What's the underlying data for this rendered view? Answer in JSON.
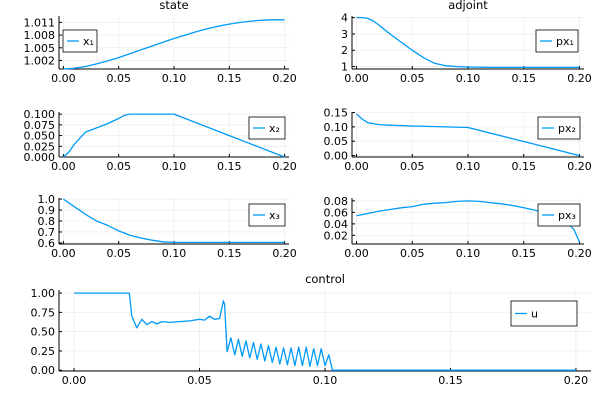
{
  "colors": {
    "series": "#009af9",
    "grid": "#e8e8e8",
    "axis": "#000000"
  },
  "chart_data": [
    {
      "id": "x1",
      "type": "line",
      "title": "state",
      "xlim": [
        -0.004,
        0.204
      ],
      "ylim": [
        1.0,
        1.0125
      ],
      "xticks": [
        0,
        0.05,
        0.1,
        0.15,
        0.2
      ],
      "xtick_labels": [
        "0.00",
        "0.05",
        "0.10",
        "0.15",
        "0.20"
      ],
      "yticks": [
        1.002,
        1.005,
        1.008,
        1.011
      ],
      "ytick_labels": [
        "1.002",
        "1.005",
        "1.008",
        "1.011"
      ],
      "legend": "top-left",
      "grid": true,
      "series": [
        {
          "name": "x₁",
          "x": [
            0,
            0.01,
            0.02,
            0.03,
            0.04,
            0.05,
            0.06,
            0.07,
            0.08,
            0.09,
            0.1,
            0.11,
            0.12,
            0.13,
            0.14,
            0.15,
            0.16,
            0.17,
            0.18,
            0.19,
            0.2
          ],
          "y": [
            1.0,
            1.0002,
            1.0006,
            1.0012,
            1.0019,
            1.0027,
            1.0036,
            1.0045,
            1.0054,
            1.0063,
            1.0072,
            1.008,
            1.0088,
            1.0095,
            1.0101,
            1.0106,
            1.011,
            1.0113,
            1.0115,
            1.0116,
            1.0116
          ]
        }
      ]
    },
    {
      "id": "px1",
      "type": "line",
      "title": "adjoint",
      "xlim": [
        -0.004,
        0.204
      ],
      "ylim": [
        0.85,
        4.1
      ],
      "xticks": [
        0,
        0.05,
        0.1,
        0.15,
        0.2
      ],
      "xtick_labels": [
        "0.00",
        "0.05",
        "0.10",
        "0.15",
        "0.20"
      ],
      "yticks": [
        1,
        2,
        3,
        4
      ],
      "ytick_labels": [
        "1",
        "2",
        "3",
        "4"
      ],
      "legend": "top-right",
      "grid": true,
      "series": [
        {
          "name": "px₁",
          "x": [
            0,
            0.005,
            0.01,
            0.015,
            0.02,
            0.03,
            0.04,
            0.05,
            0.06,
            0.07,
            0.08,
            0.09,
            0.1,
            0.12,
            0.15,
            0.2
          ],
          "y": [
            4.0,
            4.0,
            3.95,
            3.8,
            3.55,
            3.0,
            2.5,
            2.0,
            1.55,
            1.2,
            1.05,
            1.0,
            0.97,
            0.95,
            0.95,
            0.95
          ]
        }
      ]
    },
    {
      "id": "x2",
      "type": "line",
      "title": "",
      "xlim": [
        -0.004,
        0.204
      ],
      "ylim": [
        0.0,
        0.105
      ],
      "xticks": [
        0,
        0.05,
        0.1,
        0.15,
        0.2
      ],
      "xtick_labels": [
        "0.00",
        "0.05",
        "0.10",
        "0.15",
        "0.20"
      ],
      "yticks": [
        0,
        0.025,
        0.05,
        0.075,
        0.1
      ],
      "ytick_labels": [
        "0.000",
        "0.025",
        "0.050",
        "0.075",
        "0.100"
      ],
      "legend": "right",
      "grid": true,
      "series": [
        {
          "name": "x₂",
          "x": [
            0,
            0.005,
            0.01,
            0.02,
            0.03,
            0.04,
            0.05,
            0.055,
            0.06,
            0.07,
            0.08,
            0.09,
            0.1,
            0.15,
            0.2
          ],
          "y": [
            0.0,
            0.012,
            0.03,
            0.058,
            0.068,
            0.078,
            0.09,
            0.097,
            0.1,
            0.1,
            0.1,
            0.1,
            0.1,
            0.05,
            0.0
          ]
        }
      ]
    },
    {
      "id": "px2",
      "type": "line",
      "title": "",
      "xlim": [
        -0.004,
        0.204
      ],
      "ylim": [
        -0.005,
        0.152
      ],
      "xticks": [
        0,
        0.05,
        0.1,
        0.15,
        0.2
      ],
      "xtick_labels": [
        "0.00",
        "0.05",
        "0.10",
        "0.15",
        "0.20"
      ],
      "yticks": [
        0,
        0.05,
        0.1,
        0.15
      ],
      "ytick_labels": [
        "0.00",
        "0.05",
        "0.10",
        "0.15"
      ],
      "legend": "right",
      "grid": true,
      "series": [
        {
          "name": "px₂",
          "x": [
            0,
            0.005,
            0.01,
            0.02,
            0.03,
            0.05,
            0.08,
            0.1,
            0.15,
            0.2
          ],
          "y": [
            0.145,
            0.128,
            0.115,
            0.108,
            0.106,
            0.103,
            0.1,
            0.098,
            0.049,
            0.0
          ]
        }
      ]
    },
    {
      "id": "x3",
      "type": "line",
      "title": "",
      "xlim": [
        -0.004,
        0.204
      ],
      "ylim": [
        0.59,
        1.01
      ],
      "xticks": [
        0,
        0.05,
        0.1,
        0.15,
        0.2
      ],
      "xtick_labels": [
        "0.00",
        "0.05",
        "0.10",
        "0.15",
        "0.20"
      ],
      "yticks": [
        0.6,
        0.7,
        0.8,
        0.9,
        1.0
      ],
      "ytick_labels": [
        "0.6",
        "0.7",
        "0.8",
        "0.9",
        "1.0"
      ],
      "legend": "top-right",
      "grid": true,
      "series": [
        {
          "name": "x₃",
          "x": [
            0,
            0.01,
            0.02,
            0.025,
            0.03,
            0.04,
            0.05,
            0.06,
            0.07,
            0.08,
            0.09,
            0.1,
            0.15,
            0.2
          ],
          "y": [
            1.0,
            0.93,
            0.86,
            0.83,
            0.8,
            0.76,
            0.71,
            0.67,
            0.645,
            0.625,
            0.61,
            0.605,
            0.605,
            0.605
          ]
        }
      ]
    },
    {
      "id": "px3",
      "type": "line",
      "title": "",
      "xlim": [
        -0.004,
        0.204
      ],
      "ylim": [
        0.005,
        0.085
      ],
      "xticks": [
        0,
        0.05,
        0.1,
        0.15,
        0.2
      ],
      "xtick_labels": [
        "0.00",
        "0.05",
        "0.10",
        "0.15",
        "0.20"
      ],
      "yticks": [
        0.02,
        0.04,
        0.06,
        0.08
      ],
      "ytick_labels": [
        "0.02",
        "0.04",
        "0.06",
        "0.08"
      ],
      "legend": "right",
      "grid": true,
      "series": [
        {
          "name": "px₃",
          "x": [
            0,
            0.01,
            0.02,
            0.03,
            0.04,
            0.05,
            0.06,
            0.07,
            0.08,
            0.09,
            0.1,
            0.11,
            0.12,
            0.13,
            0.14,
            0.15,
            0.16,
            0.17,
            0.18,
            0.19,
            0.195,
            0.2
          ],
          "y": [
            0.054,
            0.058,
            0.062,
            0.065,
            0.068,
            0.07,
            0.074,
            0.076,
            0.077,
            0.079,
            0.08,
            0.079,
            0.077,
            0.075,
            0.072,
            0.068,
            0.064,
            0.058,
            0.05,
            0.04,
            0.03,
            0.008
          ]
        }
      ]
    },
    {
      "id": "u",
      "type": "line",
      "title": "control",
      "xlim": [
        -0.006,
        0.206
      ],
      "ylim": [
        -0.01,
        1.04
      ],
      "xticks": [
        0,
        0.05,
        0.1,
        0.15,
        0.2
      ],
      "xtick_labels": [
        "0.00",
        "0.05",
        "0.10",
        "0.15",
        "0.20"
      ],
      "yticks": [
        0,
        0.25,
        0.5,
        0.75,
        1.0
      ],
      "ytick_labels": [
        "0.00",
        "0.25",
        "0.50",
        "0.75",
        "1.00"
      ],
      "legend": "top-right",
      "grid": true,
      "series": [
        {
          "name": "u",
          "x": [
            0,
            0.022,
            0.023,
            0.025,
            0.027,
            0.029,
            0.031,
            0.033,
            0.035,
            0.038,
            0.042,
            0.046,
            0.05,
            0.052,
            0.054,
            0.056,
            0.058,
            0.0595,
            0.06,
            0.061,
            0.0625,
            0.064,
            0.0655,
            0.067,
            0.0685,
            0.07,
            0.0715,
            0.073,
            0.0745,
            0.076,
            0.0775,
            0.079,
            0.0805,
            0.082,
            0.0835,
            0.085,
            0.0865,
            0.088,
            0.0895,
            0.091,
            0.0925,
            0.094,
            0.0955,
            0.097,
            0.0985,
            0.1,
            0.1015,
            0.103,
            0.15,
            0.2
          ],
          "y": [
            1.0,
            1.0,
            0.7,
            0.55,
            0.66,
            0.59,
            0.63,
            0.6,
            0.63,
            0.62,
            0.63,
            0.64,
            0.66,
            0.65,
            0.7,
            0.66,
            0.67,
            0.9,
            0.85,
            0.24,
            0.42,
            0.2,
            0.4,
            0.18,
            0.38,
            0.16,
            0.36,
            0.14,
            0.34,
            0.12,
            0.32,
            0.1,
            0.3,
            0.08,
            0.29,
            0.07,
            0.29,
            0.06,
            0.3,
            0.06,
            0.3,
            0.05,
            0.28,
            0.06,
            0.28,
            0.06,
            0.2,
            0.0,
            0.0,
            0.0
          ]
        }
      ]
    }
  ]
}
